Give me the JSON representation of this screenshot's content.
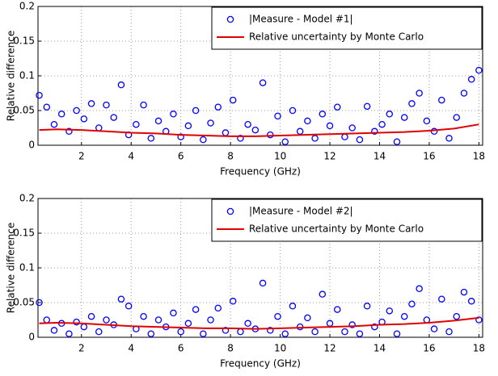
{
  "chart_data": [
    {
      "type": "scatter",
      "x_label": "Frequency (GHz)",
      "y_label": "Relative difference",
      "xlim": [
        0.25,
        18.15
      ],
      "ylim": [
        0,
        0.2
      ],
      "xticks": [
        2,
        4,
        6,
        8,
        10,
        12,
        14,
        16,
        18
      ],
      "yticks": [
        0,
        0.05,
        0.1,
        0.15,
        0.2
      ],
      "grid": true,
      "legend": "upper right",
      "series": [
        {
          "name": "|Measure - Model #1|",
          "kind": "scatter",
          "color": "#0000ff",
          "x": [
            0.3,
            0.6,
            0.9,
            1.2,
            1.5,
            1.8,
            2.1,
            2.4,
            2.7,
            3.0,
            3.3,
            3.6,
            3.9,
            4.2,
            4.5,
            4.8,
            5.1,
            5.4,
            5.7,
            6.0,
            6.3,
            6.6,
            6.9,
            7.2,
            7.5,
            7.8,
            8.1,
            8.4,
            8.7,
            9.0,
            9.3,
            9.6,
            9.9,
            10.2,
            10.5,
            10.8,
            11.1,
            11.4,
            11.7,
            12.0,
            12.3,
            12.6,
            12.9,
            13.2,
            13.5,
            13.8,
            14.1,
            14.4,
            14.7,
            15.0,
            15.3,
            15.6,
            15.9,
            16.2,
            16.5,
            16.8,
            17.1,
            17.4,
            17.7,
            18.0
          ],
          "values": [
            0.072,
            0.055,
            0.03,
            0.045,
            0.02,
            0.05,
            0.038,
            0.06,
            0.025,
            0.058,
            0.04,
            0.087,
            0.015,
            0.03,
            0.058,
            0.01,
            0.035,
            0.02,
            0.045,
            0.012,
            0.028,
            0.05,
            0.008,
            0.032,
            0.055,
            0.018,
            0.065,
            0.01,
            0.03,
            0.022,
            0.09,
            0.015,
            0.042,
            0.005,
            0.05,
            0.02,
            0.035,
            0.01,
            0.045,
            0.028,
            0.055,
            0.012,
            0.025,
            0.008,
            0.056,
            0.02,
            0.03,
            0.045,
            0.005,
            0.04,
            0.06,
            0.075,
            0.035,
            0.02,
            0.065,
            0.01,
            0.04,
            0.075,
            0.095,
            0.108
          ]
        },
        {
          "name": "Relative uncertainty by Monte Carlo",
          "kind": "line",
          "color": "#e00000",
          "x": [
            0.3,
            1,
            2,
            3,
            4,
            5,
            6,
            7,
            8,
            9,
            10,
            11,
            12,
            13,
            14,
            15,
            16,
            17,
            18
          ],
          "values": [
            0.022,
            0.023,
            0.022,
            0.02,
            0.018,
            0.017,
            0.015,
            0.014,
            0.013,
            0.013,
            0.014,
            0.015,
            0.016,
            0.017,
            0.018,
            0.019,
            0.021,
            0.024,
            0.03
          ]
        }
      ]
    },
    {
      "type": "scatter",
      "x_label": "Frequency (GHz)",
      "y_label": "Relative difference",
      "xlim": [
        0.25,
        18.15
      ],
      "ylim": [
        0,
        0.2
      ],
      "xticks": [
        2,
        4,
        6,
        8,
        10,
        12,
        14,
        16,
        18
      ],
      "yticks": [
        0,
        0.05,
        0.1,
        0.15,
        0.2
      ],
      "grid": true,
      "legend": "upper right",
      "series": [
        {
          "name": "|Measure - Model #2|",
          "kind": "scatter",
          "color": "#0000ff",
          "x": [
            0.3,
            0.6,
            0.9,
            1.2,
            1.5,
            1.8,
            2.1,
            2.4,
            2.7,
            3.0,
            3.3,
            3.6,
            3.9,
            4.2,
            4.5,
            4.8,
            5.1,
            5.4,
            5.7,
            6.0,
            6.3,
            6.6,
            6.9,
            7.2,
            7.5,
            7.8,
            8.1,
            8.4,
            8.7,
            9.0,
            9.3,
            9.6,
            9.9,
            10.2,
            10.5,
            10.8,
            11.1,
            11.4,
            11.7,
            12.0,
            12.3,
            12.6,
            12.9,
            13.2,
            13.5,
            13.8,
            14.1,
            14.4,
            14.7,
            15.0,
            15.3,
            15.6,
            15.9,
            16.2,
            16.5,
            16.8,
            17.1,
            17.4,
            17.7,
            18.0
          ],
          "values": [
            0.05,
            0.025,
            0.01,
            0.02,
            0.005,
            0.022,
            0.015,
            0.03,
            0.008,
            0.025,
            0.018,
            0.055,
            0.045,
            0.012,
            0.03,
            0.005,
            0.025,
            0.015,
            0.035,
            0.008,
            0.02,
            0.04,
            0.005,
            0.025,
            0.042,
            0.01,
            0.052,
            0.008,
            0.02,
            0.012,
            0.078,
            0.01,
            0.03,
            0.005,
            0.045,
            0.015,
            0.028,
            0.008,
            0.062,
            0.02,
            0.04,
            0.008,
            0.018,
            0.005,
            0.045,
            0.015,
            0.022,
            0.038,
            0.005,
            0.03,
            0.048,
            0.07,
            0.025,
            0.012,
            0.055,
            0.008,
            0.03,
            0.065,
            0.052,
            0.025
          ]
        },
        {
          "name": "Relative uncertainty by Monte Carlo",
          "kind": "line",
          "color": "#e00000",
          "x": [
            0.3,
            1,
            2,
            3,
            4,
            5,
            6,
            7,
            8,
            9,
            10,
            11,
            12,
            13,
            14,
            15,
            16,
            17,
            18
          ],
          "values": [
            0.02,
            0.021,
            0.02,
            0.018,
            0.016,
            0.015,
            0.014,
            0.013,
            0.013,
            0.012,
            0.013,
            0.014,
            0.015,
            0.016,
            0.018,
            0.019,
            0.021,
            0.024,
            0.028
          ]
        }
      ]
    }
  ]
}
